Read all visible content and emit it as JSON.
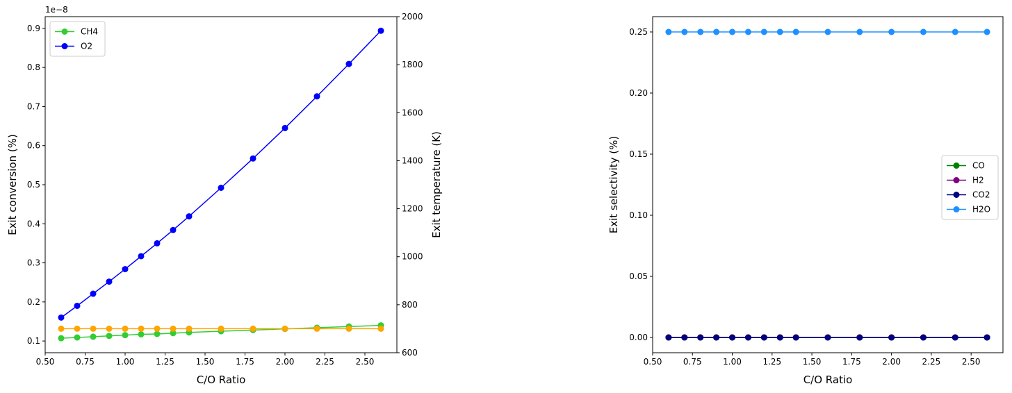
{
  "chart_data": [
    {
      "type": "line",
      "xlabel": "C/O Ratio",
      "ylabel": "Exit conversion (%)",
      "y2label": "Exit temperature (K)",
      "y_offset_label": "1e−8",
      "xlim": [
        0.5,
        2.7
      ],
      "ylim": [
        0.07,
        0.93
      ],
      "y2lim": [
        600,
        2000
      ],
      "xticks": [
        "0.50",
        "0.75",
        "1.00",
        "1.25",
        "1.50",
        "1.75",
        "2.00",
        "2.25",
        "2.50"
      ],
      "yticks": [
        "0.1",
        "0.2",
        "0.3",
        "0.4",
        "0.5",
        "0.6",
        "0.7",
        "0.8",
        "0.9"
      ],
      "y2ticks": [
        "600",
        "800",
        "1000",
        "1200",
        "1400",
        "1600",
        "1800",
        "2000"
      ],
      "legend_position": "upper-left",
      "x": [
        0.6,
        0.7,
        0.8,
        0.9,
        1.0,
        1.1,
        1.2,
        1.3,
        1.4,
        1.6,
        1.8,
        2.0,
        2.2,
        2.4,
        2.6
      ],
      "series": [
        {
          "name": "CH4",
          "color": "#32cd32",
          "axis": "left",
          "values": [
            0.107,
            0.109,
            0.111,
            0.113,
            0.115,
            0.117,
            0.118,
            0.12,
            0.122,
            0.125,
            0.128,
            0.131,
            0.134,
            0.137,
            0.14
          ]
        },
        {
          "name": "O2",
          "color": "#0000ff",
          "axis": "left",
          "values": [
            0.16,
            0.19,
            0.221,
            0.252,
            0.284,
            0.317,
            0.35,
            0.384,
            0.419,
            0.492,
            0.567,
            0.645,
            0.726,
            0.809,
            0.894
          ]
        },
        {
          "name": "",
          "color": "#ffa500",
          "axis": "right",
          "values": [
            700,
            700,
            700,
            700,
            700,
            700,
            700,
            700,
            700,
            700,
            700,
            700,
            700,
            700,
            700
          ]
        }
      ]
    },
    {
      "type": "line",
      "xlabel": "C/O Ratio",
      "ylabel": "Exit selectivity (%)",
      "xlim": [
        0.5,
        2.7
      ],
      "ylim": [
        -0.0125,
        0.2625
      ],
      "xticks": [
        "0.50",
        "0.75",
        "1.00",
        "1.25",
        "1.50",
        "1.75",
        "2.00",
        "2.25",
        "2.50"
      ],
      "yticks": [
        "0.00",
        "0.05",
        "0.10",
        "0.15",
        "0.20",
        "0.25"
      ],
      "legend_position": "center-right",
      "x": [
        0.6,
        0.7,
        0.8,
        0.9,
        1.0,
        1.1,
        1.2,
        1.3,
        1.4,
        1.6,
        1.8,
        2.0,
        2.2,
        2.4,
        2.6
      ],
      "series": [
        {
          "name": "CO",
          "color": "#008000",
          "values": [
            0,
            0,
            0,
            0,
            0,
            0,
            0,
            0,
            0,
            0,
            0,
            0,
            0,
            0,
            0
          ]
        },
        {
          "name": "H2",
          "color": "#800080",
          "values": [
            0,
            0,
            0,
            0,
            0,
            0,
            0,
            0,
            0,
            0,
            0,
            0,
            0,
            0,
            0
          ]
        },
        {
          "name": "CO2",
          "color": "#000080",
          "values": [
            0,
            0,
            0,
            0,
            0,
            0,
            0,
            0,
            0,
            0,
            0,
            0,
            0,
            0,
            0
          ]
        },
        {
          "name": "H2O",
          "color": "#1e90ff",
          "values": [
            0.25,
            0.25,
            0.25,
            0.25,
            0.25,
            0.25,
            0.25,
            0.25,
            0.25,
            0.25,
            0.25,
            0.25,
            0.25,
            0.25,
            0.25
          ]
        }
      ]
    }
  ]
}
